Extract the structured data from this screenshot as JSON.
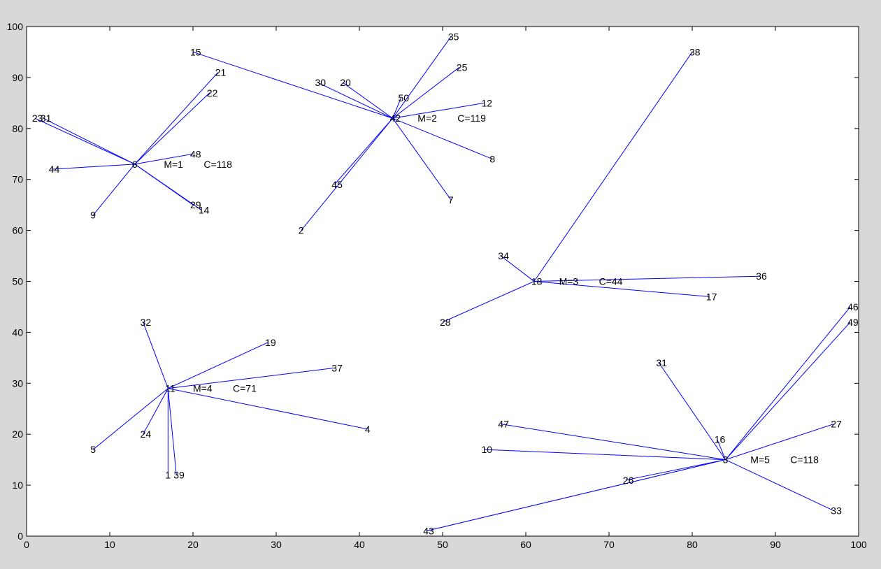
{
  "chart_data": {
    "type": "scatter",
    "title": "",
    "xlabel": "",
    "ylabel": "",
    "xlim": [
      0,
      100
    ],
    "ylim": [
      0,
      100
    ],
    "xticks": [
      "0",
      "10",
      "20",
      "30",
      "40",
      "50",
      "60",
      "70",
      "80",
      "90",
      "100"
    ],
    "yticks": [
      "0",
      "10",
      "20",
      "30",
      "40",
      "50",
      "60",
      "70",
      "80",
      "90",
      "100"
    ],
    "grid": false,
    "line_color": "#0000ff",
    "background": "#ffffff",
    "clusters": [
      {
        "center": {
          "id": "6",
          "x": 13,
          "y": 73
        },
        "m_label": "M=1",
        "c_label": "C=118",
        "label_at": {
          "x": 16.5,
          "y": 73
        },
        "members": [
          {
            "id": "21",
            "x": 23,
            "y": 91
          },
          {
            "id": "22",
            "x": 22,
            "y": 87
          },
          {
            "id": "23",
            "x": 1,
            "y": 82
          },
          {
            "id": "31",
            "x": 2,
            "y": 82
          },
          {
            "id": "44",
            "x": 3,
            "y": 72
          },
          {
            "id": "48",
            "x": 20,
            "y": 75
          },
          {
            "id": "29",
            "x": 20,
            "y": 65
          },
          {
            "id": "14",
            "x": 21,
            "y": 64
          },
          {
            "id": "9",
            "x": 8,
            "y": 63
          }
        ]
      },
      {
        "center": {
          "id": "42",
          "x": 44,
          "y": 82
        },
        "m_label": "M=2",
        "c_label": "C=119",
        "label_at": {
          "x": 47,
          "y": 82
        },
        "members": [
          {
            "id": "35",
            "x": 51,
            "y": 98
          },
          {
            "id": "25",
            "x": 52,
            "y": 92
          },
          {
            "id": "15",
            "x": 20,
            "y": 95
          },
          {
            "id": "30",
            "x": 35,
            "y": 89
          },
          {
            "id": "20",
            "x": 38,
            "y": 89
          },
          {
            "id": "50",
            "x": 45,
            "y": 86
          },
          {
            "id": "12",
            "x": 55,
            "y": 85
          },
          {
            "id": "8",
            "x": 56,
            "y": 74
          },
          {
            "id": "45",
            "x": 37,
            "y": 69
          },
          {
            "id": "7",
            "x": 51,
            "y": 66
          },
          {
            "id": "2",
            "x": 33,
            "y": 60
          }
        ]
      },
      {
        "center": {
          "id": "18",
          "x": 61,
          "y": 50
        },
        "m_label": "M=3",
        "c_label": "C=44",
        "label_at": {
          "x": 64,
          "y": 50
        },
        "members": [
          {
            "id": "38",
            "x": 80,
            "y": 95
          },
          {
            "id": "34",
            "x": 57,
            "y": 55
          },
          {
            "id": "36",
            "x": 88,
            "y": 51
          },
          {
            "id": "17",
            "x": 82,
            "y": 47
          },
          {
            "id": "28",
            "x": 50,
            "y": 42
          }
        ]
      },
      {
        "center": {
          "id": "11",
          "x": 17,
          "y": 29
        },
        "m_label": "M=4",
        "c_label": "C=71",
        "label_at": {
          "x": 20,
          "y": 29
        },
        "members": [
          {
            "id": "32",
            "x": 14,
            "y": 42
          },
          {
            "id": "19",
            "x": 29,
            "y": 38
          },
          {
            "id": "37",
            "x": 37,
            "y": 33
          },
          {
            "id": "4",
            "x": 41,
            "y": 21
          },
          {
            "id": "24",
            "x": 14,
            "y": 20
          },
          {
            "id": "5",
            "x": 8,
            "y": 17
          },
          {
            "id": "1",
            "x": 17,
            "y": 12
          },
          {
            "id": "39",
            "x": 18,
            "y": 12
          }
        ]
      },
      {
        "center": {
          "id": "3",
          "x": 84,
          "y": 15
        },
        "m_label": "M=5",
        "c_label": "C=118",
        "label_at": {
          "x": 87,
          "y": 15
        },
        "members": [
          {
            "id": "46",
            "x": 99,
            "y": 45
          },
          {
            "id": "49",
            "x": 99,
            "y": 42
          },
          {
            "id": "31",
            "x": 76,
            "y": 34
          },
          {
            "id": "27",
            "x": 97,
            "y": 22
          },
          {
            "id": "47",
            "x": 57,
            "y": 22
          },
          {
            "id": "16",
            "x": 83,
            "y": 19
          },
          {
            "id": "10",
            "x": 55,
            "y": 17
          },
          {
            "id": "26",
            "x": 72,
            "y": 11
          },
          {
            "id": "33",
            "x": 97,
            "y": 5
          },
          {
            "id": "43",
            "x": 48,
            "y": 1
          }
        ]
      }
    ]
  }
}
